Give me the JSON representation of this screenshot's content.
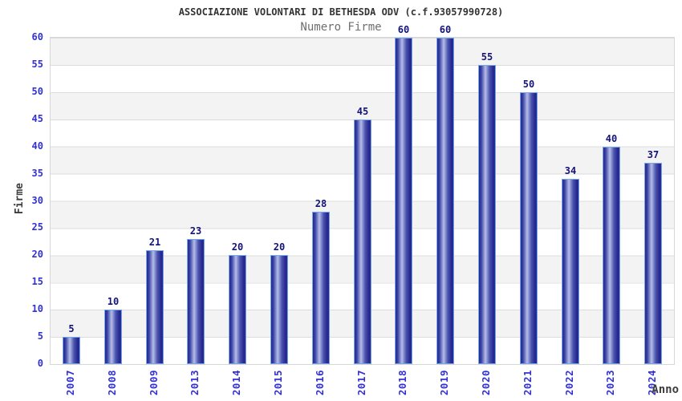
{
  "header": {
    "title": "ASSOCIAZIONE VOLONTARI DI BETHESDA ODV (c.f.93057990728)",
    "subtitle": "Numero Firme"
  },
  "chart_data": {
    "type": "bar",
    "title": "ASSOCIAZIONE VOLONTARI DI BETHESDA ODV (c.f.93057990728)",
    "subtitle": "Numero Firme",
    "categories": [
      "2007",
      "2008",
      "2009",
      "2013",
      "2014",
      "2015",
      "2016",
      "2017",
      "2018",
      "2019",
      "2020",
      "2021",
      "2022",
      "2023",
      "2024"
    ],
    "values": [
      5,
      10,
      21,
      23,
      20,
      20,
      28,
      45,
      60,
      60,
      55,
      50,
      34,
      40,
      37
    ],
    "xlabel": "Anno",
    "ylabel": "Firme",
    "ylim": [
      0,
      60
    ],
    "yticks": [
      0,
      5,
      10,
      15,
      20,
      25,
      30,
      35,
      40,
      45,
      50,
      55,
      60
    ],
    "grid": "horizontal gridlines every 5, alternating gray/white bands",
    "legend": "none",
    "bar_value_labels": true
  },
  "colors": {
    "title_color": "#333333",
    "subtitle_color": "#6e6e6e",
    "tick_label": "#3232d2",
    "value_label": "#13137a",
    "axis_text": "#3d3d3d",
    "bar_dark": "#26268e",
    "bar_light": "#b6bde9",
    "bar_border": "#74a7ea",
    "band_gray": "#f3f3f3",
    "gridline": "#dcdcdc",
    "plot_border": "#d7d7d7",
    "background": "#ffffff"
  }
}
